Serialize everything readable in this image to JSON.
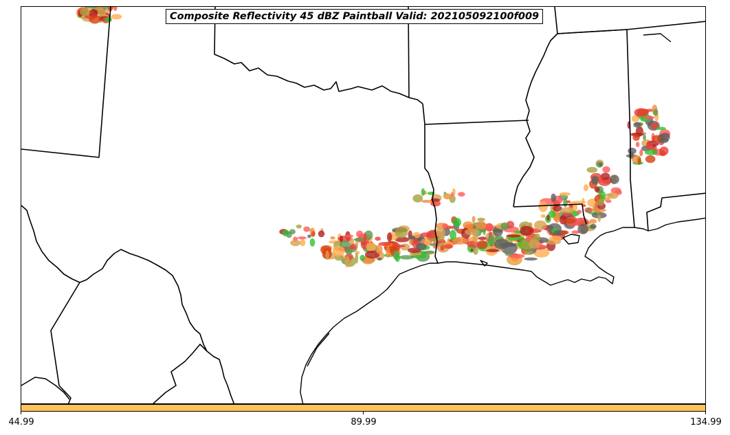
{
  "title": "Composite Reflectivity 45 dBZ Paintball Valid: 202105092100f009",
  "colorbar": {
    "color": "#ffc35a",
    "ticks": [
      "44.99",
      "89.99",
      "134.99"
    ]
  },
  "paintball_colors": [
    "#e8403a",
    "#ff5a5a",
    "#f08c3c",
    "#ffae50",
    "#d8a050",
    "#a8a040",
    "#5a9a50",
    "#30c030",
    "#606060",
    "#b02020",
    "#d84010"
  ],
  "map_features": [
    "state-boundaries",
    "coastline"
  ]
}
